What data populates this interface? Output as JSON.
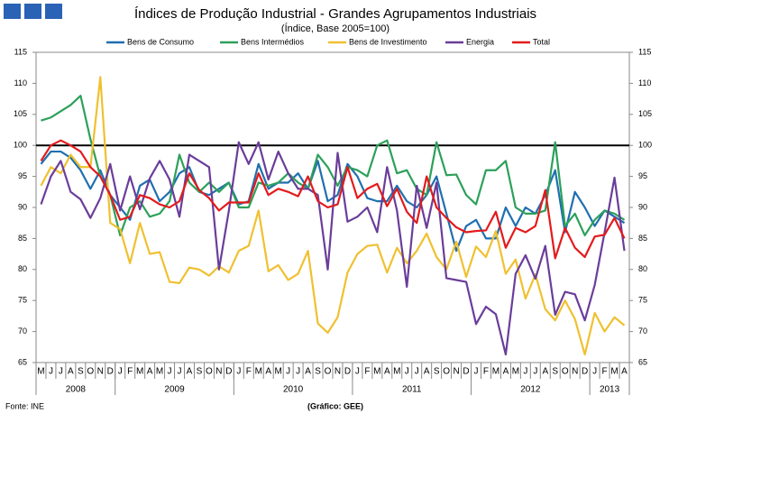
{
  "chart_data": {
    "type": "line",
    "title": "Índices de Produção Industrial - Grandes Agrupamentos Industriais",
    "subtitle": "(Índice, Base 2005=100)",
    "source": "Fonte: INE",
    "credit": "(Gráfico: GEE)",
    "categories": [
      "M",
      "J",
      "J",
      "A",
      "S",
      "O",
      "N",
      "D",
      "J",
      "F",
      "M",
      "A",
      "M",
      "J",
      "J",
      "A",
      "S",
      "O",
      "N",
      "D",
      "J",
      "F",
      "M",
      "A",
      "M",
      "J",
      "J",
      "A",
      "S",
      "O",
      "N",
      "D",
      "J",
      "F",
      "M",
      "A",
      "M",
      "J",
      "J",
      "A",
      "S",
      "O",
      "N",
      "D",
      "J",
      "F",
      "M",
      "A",
      "M",
      "J",
      "J",
      "A",
      "S",
      "O",
      "N",
      "D",
      "J",
      "F",
      "M",
      "A"
    ],
    "years": [
      "2008",
      "2009",
      "2010",
      "2011",
      "2012",
      "2013"
    ],
    "ylim": [
      65,
      115
    ],
    "yticks": [
      65,
      70,
      75,
      80,
      85,
      90,
      95,
      100,
      105,
      110,
      115
    ],
    "reference_line": 100,
    "series": [
      {
        "name": "Bens de Consumo",
        "color": "#1f6fb0",
        "values": [
          97,
          99,
          99,
          98,
          96,
          93,
          96,
          92,
          90,
          88,
          93.5,
          94.5,
          91,
          92.5,
          95.5,
          96.5,
          92.5,
          92,
          93,
          94,
          90.5,
          91,
          97,
          93,
          94,
          94,
          95.5,
          93,
          97.5,
          91,
          92,
          97,
          95,
          91.5,
          91,
          91,
          93.5,
          91,
          90,
          92,
          95,
          89,
          83,
          87,
          88,
          85,
          85,
          90,
          87,
          90,
          89,
          92,
          96,
          86,
          92.5,
          90,
          87,
          89.5,
          88.5,
          87.5
        ]
      },
      {
        "name": "Bens Intermédios",
        "color": "#2ca05a",
        "values": [
          104,
          104.5,
          105.5,
          106.5,
          108,
          101,
          95,
          92,
          85.5,
          90,
          91,
          88.5,
          89,
          91,
          98.5,
          94,
          92.5,
          94,
          92.5,
          94,
          90,
          90,
          94,
          93.5,
          94,
          95.5,
          94,
          93,
          98.5,
          96.5,
          93.5,
          96.5,
          96,
          95,
          100,
          100.8,
          95.5,
          96,
          93,
          92,
          100.5,
          95.2,
          95.3,
          92,
          90.5,
          96,
          96,
          97.5,
          90,
          89,
          89,
          89.5,
          100.5,
          87,
          89,
          85.5,
          88,
          89.5,
          89,
          88
        ]
      },
      {
        "name": "Bens de Investimento",
        "color": "#f0c030",
        "values": [
          93.5,
          96.5,
          95.5,
          98.5,
          96.5,
          96.5,
          111,
          87.5,
          86.5,
          81,
          87.5,
          82.5,
          82.8,
          78,
          77.8,
          80.3,
          80,
          79,
          80.5,
          79.5,
          83,
          83.8,
          89.5,
          79.7,
          80.7,
          78.3,
          79.3,
          83,
          71.3,
          69.8,
          72.3,
          79.5,
          82.5,
          83.8,
          84,
          79.5,
          83.5,
          81,
          83,
          85.8,
          82,
          80,
          84.5,
          78.8,
          83.7,
          82,
          86.2,
          79.3,
          81.6,
          75.3,
          79.2,
          73.6,
          71.8,
          75,
          72,
          66.3,
          73,
          70,
          72.3,
          71
        ]
      },
      {
        "name": "Energia",
        "color": "#6a3d9a",
        "values": [
          90.5,
          95,
          97.5,
          92.5,
          91.3,
          88.3,
          91.5,
          97,
          89.5,
          95,
          89.7,
          94.7,
          97.5,
          94.5,
          88.5,
          98.5,
          97.5,
          96.5,
          80,
          89.5,
          100.5,
          97,
          100.5,
          94.5,
          99,
          95.5,
          93,
          93,
          92,
          80,
          98.8,
          87.7,
          88.5,
          90,
          86,
          96.5,
          89.5,
          77.2,
          93.5,
          86.7,
          94,
          78.6,
          78.3,
          78,
          71.2,
          74,
          72.8,
          66.3,
          79.3,
          82.3,
          78.5,
          83.8,
          72.7,
          76.4,
          76,
          71.8,
          77.5,
          86,
          94.8,
          83
        ]
      },
      {
        "name": "Total",
        "color": "#e31a1c",
        "values": [
          97.5,
          100,
          100.8,
          100,
          99,
          96.5,
          95,
          92,
          88,
          88.5,
          92,
          91.5,
          90.5,
          90,
          91,
          95.5,
          92.8,
          91.5,
          89.5,
          90.8,
          90.8,
          90.8,
          95.5,
          92,
          93,
          92.5,
          91.8,
          95,
          91,
          90,
          90.5,
          96.5,
          91.5,
          93,
          93.8,
          90.2,
          93,
          89.3,
          87.5,
          95,
          90,
          88.3,
          86.8,
          86,
          86.2,
          86.3,
          89.3,
          83.5,
          86.7,
          86,
          87,
          92.8,
          81.8,
          86.7,
          83.5,
          82,
          85.3,
          85.6,
          88.3,
          85
        ]
      }
    ]
  }
}
